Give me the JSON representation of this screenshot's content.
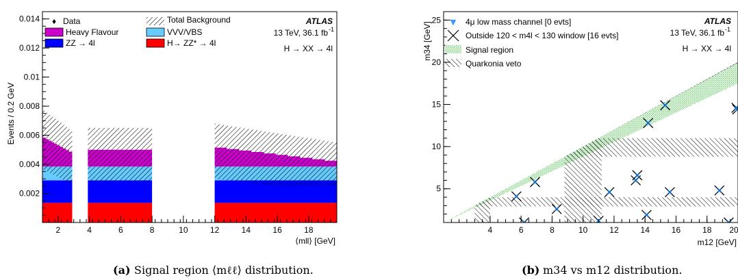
{
  "chart_data": [
    {
      "type": "bar",
      "panel": "a",
      "caption_label": "(a)",
      "caption_text": "Signal region ⟨mℓℓ⟩ distribution.",
      "xlabel": "⟨mll⟩ [GeV]",
      "ylabel": "Events / 0.2 GeV",
      "xlim": [
        1,
        19.8
      ],
      "ylim": [
        0,
        0.0145
      ],
      "xticks": [
        "2",
        "4",
        "6",
        "8",
        "10",
        "12",
        "14",
        "16",
        "18"
      ],
      "yticks": [
        "0.002",
        "0.004",
        "0.006",
        "0.008",
        "0.01",
        "0.012",
        "0.014"
      ],
      "atlas_label": "ATLAS",
      "energy_label": "13 TeV, 36.1 fb",
      "energy_sup": "-1",
      "process_label": "H → XX → 4l",
      "legend": {
        "data": "Data",
        "total_bkg": "Total Background",
        "heavy_flavour": "Heavy Flavour",
        "vvv_vbs": "VVV/VBS",
        "zz": "ZZ → 4l",
        "hzz": "H→ ZZ* → 4l"
      },
      "colors": {
        "hzz": "#ff0000",
        "zz": "#0000ff",
        "vvv": "#66ccff",
        "hf": "#cc00cc"
      },
      "segments": [
        {
          "x0": 1.0,
          "x1": 2.9,
          "hzz": [
            0.00135,
            0.00135
          ],
          "zz": [
            0.00155,
            0.00155
          ],
          "vvv": [
            0.00095,
            0.00095
          ],
          "hf_top": [
            0.0059,
            0.0048
          ],
          "band": [
            0.0019,
            0.0015
          ]
        },
        {
          "x0": 3.9,
          "x1": 8.0,
          "hzz": [
            0.00135,
            0.00135
          ],
          "zz": [
            0.00155,
            0.00155
          ],
          "vvv": [
            0.00095,
            0.00095
          ],
          "hf_top": [
            0.005,
            0.005
          ],
          "band": [
            0.0015,
            0.0015
          ]
        },
        {
          "x0": 12.0,
          "x1": 19.8,
          "hzz": [
            0.00135,
            0.00135
          ],
          "zz": [
            0.00155,
            0.00155
          ],
          "vvv": [
            0.00095,
            0.00095
          ],
          "hf_top": [
            0.0052,
            0.0042
          ],
          "band": [
            0.0016,
            0.0013
          ]
        }
      ]
    },
    {
      "type": "scatter",
      "panel": "b",
      "caption_label": "(b)",
      "caption_text": "m34 vs m12 distribution.",
      "xlabel": "m12 [GeV]",
      "ylabel": "m34 [GeV]",
      "xlim": [
        1,
        20
      ],
      "ylim": [
        1,
        26
      ],
      "xticks": [
        "4",
        "6",
        "8",
        "10",
        "12",
        "14",
        "16",
        "18",
        "20"
      ],
      "yticks": [
        "5",
        "10",
        "15",
        "20",
        "25"
      ],
      "atlas_label": "ATLAS",
      "energy_label": "13 TeV, 36.1 fb",
      "energy_sup": "-1",
      "process_label": "H → XX → 4l",
      "legend": {
        "low_mass": "4μ low mass channel [0 evts]",
        "outside": "Outside 120 < m4l < 130 window [16 evts]",
        "signal_region": "Signal region",
        "quarkonia": "Quarkonia veto"
      },
      "points": [
        {
          "x": 5.7,
          "y": 4.1
        },
        {
          "x": 6.2,
          "y": 1.0
        },
        {
          "x": 6.9,
          "y": 5.8
        },
        {
          "x": 8.3,
          "y": 2.6
        },
        {
          "x": 11.0,
          "y": 1.2
        },
        {
          "x": 11.7,
          "y": 4.6
        },
        {
          "x": 13.4,
          "y": 6.0
        },
        {
          "x": 13.5,
          "y": 6.6
        },
        {
          "x": 14.1,
          "y": 1.9
        },
        {
          "x": 14.2,
          "y": 12.8
        },
        {
          "x": 15.3,
          "y": 14.9
        },
        {
          "x": 15.6,
          "y": 4.6
        },
        {
          "x": 18.8,
          "y": 4.8
        },
        {
          "x": 19.4,
          "y": 1.0
        },
        {
          "x": 19.9,
          "y": 14.6
        },
        {
          "x": 19.95,
          "y": 14.4
        }
      ]
    }
  ]
}
